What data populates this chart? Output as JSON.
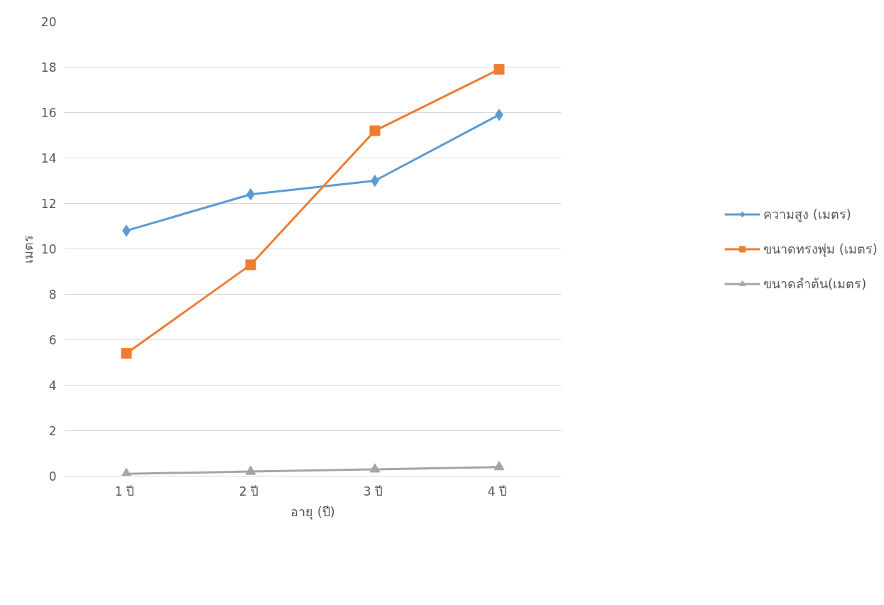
{
  "chart_data": {
    "type": "line",
    "xlabel": "อายุ (ปี)",
    "ylabel": "เมตร",
    "categories": [
      "1  ปี",
      "2  ปี",
      "3  ปี",
      "4  ปี"
    ],
    "series": [
      {
        "name": "ความสูง (เมตร)",
        "color": "#5b9bd5",
        "marker": "diamond",
        "values": [
          10.8,
          12.4,
          13.0,
          15.9
        ]
      },
      {
        "name": "ขนาดทรงพุ่ม (เมตร)",
        "color": "#ed7d31",
        "marker": "square",
        "values": [
          5.4,
          9.3,
          15.2,
          17.9
        ]
      },
      {
        "name": "ขนาดลำต้น(เมตร)",
        "color": "#a5a5a5",
        "marker": "triangle",
        "values": [
          0.1,
          0.2,
          0.3,
          0.4
        ]
      }
    ],
    "ylim": [
      0,
      20
    ],
    "yticks": [
      0,
      2,
      4,
      6,
      8,
      10,
      12,
      14,
      16,
      18,
      20
    ],
    "grid": "y",
    "legend": "right"
  }
}
